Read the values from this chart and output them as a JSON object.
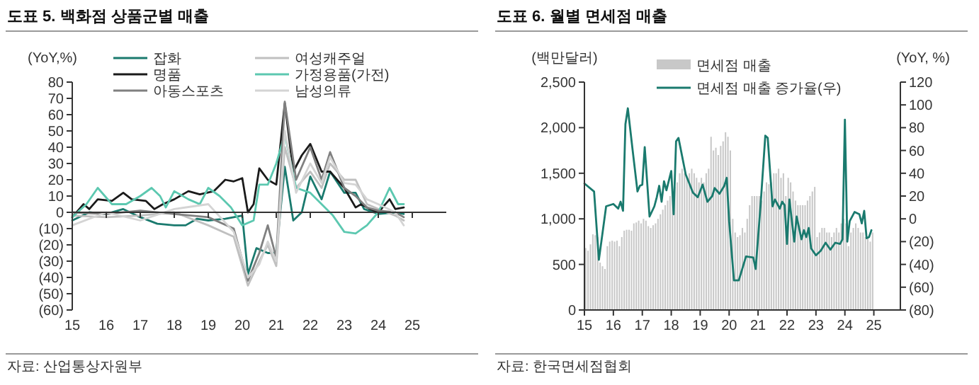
{
  "chart_data": [
    {
      "type": "line",
      "title": "도표 5. 백화점 상품군별 매출",
      "ylabel": "(YoY,%)",
      "legend": "top",
      "xlim": [
        "2015-01",
        "2026-01"
      ],
      "xticks": [
        {
          "value": "2015-01",
          "label": "15"
        },
        {
          "value": "2016-01",
          "label": "16"
        },
        {
          "value": "2017-01",
          "label": "17"
        },
        {
          "value": "2018-01",
          "label": "18"
        },
        {
          "value": "2019-01",
          "label": "19"
        },
        {
          "value": "2020-01",
          "label": "20"
        },
        {
          "value": "2021-01",
          "label": "21"
        },
        {
          "value": "2022-01",
          "label": "22"
        },
        {
          "value": "2023-01",
          "label": "23"
        },
        {
          "value": "2024-01",
          "label": "24"
        },
        {
          "value": "2025-01",
          "label": "25"
        }
      ],
      "ylim": [
        -60,
        80
      ],
      "yticks": [
        {
          "value": -60,
          "label": "(60)"
        },
        {
          "value": -50,
          "label": "(50)"
        },
        {
          "value": -40,
          "label": "(40)"
        },
        {
          "value": -30,
          "label": "(30)"
        },
        {
          "value": -20,
          "label": "(20)"
        },
        {
          "value": -10,
          "label": "(10)"
        },
        0,
        10,
        20,
        30,
        40,
        50,
        60,
        70,
        80
      ],
      "series": [
        {
          "name": "잡화",
          "color": "#1a7a6e",
          "x": [
            "2015-01",
            "2015-07",
            "2016-01",
            "2016-07",
            "2017-01",
            "2017-07",
            "2018-01",
            "2018-05",
            "2018-09",
            "2019-01",
            "2019-07",
            "2020-01",
            "2020-03",
            "2020-06",
            "2020-10",
            "2021-01",
            "2021-04",
            "2021-07",
            "2021-10",
            "2022-01",
            "2022-05",
            "2022-08",
            "2023-01",
            "2023-05",
            "2023-08",
            "2024-01",
            "2024-07",
            "2024-10"
          ],
          "values": [
            -5,
            0,
            -1,
            2,
            -3,
            -7,
            -8,
            -8,
            -4,
            -5,
            -4,
            -2,
            -38,
            -22,
            -25,
            -25,
            28,
            -5,
            0,
            22,
            8,
            25,
            12,
            12,
            2,
            -1,
            0,
            -1
          ]
        },
        {
          "name": "여성캐주얼",
          "color": "#c0c0c0",
          "x": [
            "2015-01",
            "2016-01",
            "2017-01",
            "2018-01",
            "2019-01",
            "2019-10",
            "2020-03",
            "2020-07",
            "2020-10",
            "2021-01",
            "2021-04",
            "2021-08",
            "2022-01",
            "2022-05",
            "2022-08",
            "2023-01",
            "2023-05",
            "2023-09",
            "2024-01",
            "2024-07",
            "2024-10"
          ],
          "values": [
            -2,
            -3,
            -2,
            0,
            -8,
            -15,
            -45,
            -30,
            -20,
            -33,
            40,
            15,
            25,
            15,
            30,
            20,
            20,
            5,
            2,
            -2,
            -5
          ]
        },
        {
          "name": "명품",
          "color": "#1a1a1a",
          "x": [
            "2015-01",
            "2015-05",
            "2015-07",
            "2015-10",
            "2016-03",
            "2016-07",
            "2016-10",
            "2017-03",
            "2017-06",
            "2017-09",
            "2018-01",
            "2018-06",
            "2018-10",
            "2019-03",
            "2019-07",
            "2019-10",
            "2020-01",
            "2020-03",
            "2020-05",
            "2020-07",
            "2020-10",
            "2021-01",
            "2021-04",
            "2021-07",
            "2021-10",
            "2022-01",
            "2022-05",
            "2022-08",
            "2023-01",
            "2023-05",
            "2023-07",
            "2023-10",
            "2024-01",
            "2024-05",
            "2024-07",
            "2024-10"
          ],
          "values": [
            -3,
            5,
            2,
            8,
            7,
            12,
            8,
            7,
            2,
            5,
            8,
            13,
            11,
            13,
            20,
            19,
            21,
            0,
            5,
            27,
            20,
            17,
            67,
            25,
            35,
            42,
            25,
            25,
            15,
            3,
            5,
            2,
            0,
            8,
            2,
            3
          ]
        },
        {
          "name": "가정용품(가전)",
          "color": "#5cc8b0",
          "x": [
            "2015-01",
            "2015-06",
            "2015-10",
            "2016-03",
            "2016-08",
            "2017-01",
            "2017-05",
            "2017-08",
            "2017-10",
            "2018-01",
            "2018-06",
            "2018-10",
            "2019-01",
            "2019-05",
            "2019-09",
            "2020-01",
            "2020-05",
            "2020-07",
            "2020-10",
            "2021-01",
            "2021-04",
            "2021-08",
            "2022-01",
            "2022-05",
            "2022-09",
            "2023-01",
            "2023-05",
            "2023-09",
            "2024-01",
            "2024-05",
            "2024-08",
            "2024-10"
          ],
          "values": [
            -3,
            5,
            15,
            5,
            5,
            10,
            15,
            10,
            3,
            13,
            8,
            5,
            15,
            10,
            3,
            -8,
            -5,
            17,
            17,
            30,
            48,
            15,
            12,
            5,
            -2,
            -12,
            -13,
            -8,
            0,
            15,
            5,
            5
          ]
        },
        {
          "name": "아동스포츠",
          "color": "#808080",
          "x": [
            "2015-01",
            "2016-01",
            "2017-01",
            "2018-01",
            "2019-01",
            "2019-10",
            "2020-03",
            "2020-07",
            "2020-10",
            "2021-01",
            "2021-04",
            "2021-08",
            "2022-01",
            "2022-05",
            "2022-08",
            "2023-01",
            "2023-05",
            "2023-09",
            "2024-01",
            "2024-07",
            "2024-10"
          ],
          "values": [
            0,
            -1,
            1,
            -1,
            -3,
            -10,
            -42,
            -25,
            -8,
            -28,
            68,
            20,
            40,
            20,
            37,
            15,
            10,
            3,
            1,
            0,
            -3
          ]
        },
        {
          "name": "남성의류",
          "color": "#d4d4d4",
          "x": [
            "2015-01",
            "2016-01",
            "2017-01",
            "2018-01",
            "2019-01",
            "2019-10",
            "2020-03",
            "2020-07",
            "2020-10",
            "2021-01",
            "2021-04",
            "2021-08",
            "2022-01",
            "2022-05",
            "2022-08",
            "2023-01",
            "2023-05",
            "2023-09",
            "2024-01",
            "2024-07",
            "2024-10"
          ],
          "values": [
            -8,
            0,
            -5,
            2,
            5,
            -12,
            -40,
            -32,
            -18,
            -30,
            50,
            12,
            30,
            18,
            34,
            18,
            17,
            8,
            5,
            0,
            -8
          ]
        }
      ],
      "annotations": [
        "자료: 산업통상자원부"
      ]
    },
    {
      "type": "bar",
      "title": "도표 6. 월별 면세점 매출",
      "ylabel": "(백만달러)",
      "y2label": "(YoY, %)",
      "legend": "top",
      "xlim": [
        "2015-01",
        "2025-12"
      ],
      "xticks": [
        {
          "value": "2015-01",
          "label": "15"
        },
        {
          "value": "2016-01",
          "label": "16"
        },
        {
          "value": "2017-01",
          "label": "17"
        },
        {
          "value": "2018-01",
          "label": "18"
        },
        {
          "value": "2019-01",
          "label": "19"
        },
        {
          "value": "2020-01",
          "label": "20"
        },
        {
          "value": "2021-01",
          "label": "21"
        },
        {
          "value": "2022-01",
          "label": "22"
        },
        {
          "value": "2023-01",
          "label": "23"
        },
        {
          "value": "2024-01",
          "label": "24"
        },
        {
          "value": "2025-01",
          "label": "25"
        }
      ],
      "ylim": [
        0,
        2500
      ],
      "yticks": [
        0,
        500,
        {
          "value": 1000,
          "label": "1,000"
        },
        {
          "value": 1500,
          "label": "1,500"
        },
        {
          "value": 2000,
          "label": "2,000"
        },
        {
          "value": 2500,
          "label": "2,500"
        }
      ],
      "y2lim": [
        -80,
        120
      ],
      "y2ticks": [
        {
          "value": -80,
          "label": "(80)"
        },
        {
          "value": -60,
          "label": "(60)"
        },
        {
          "value": -40,
          "label": "(40)"
        },
        {
          "value": -20,
          "label": "(20)"
        },
        0,
        20,
        40,
        60,
        80,
        100,
        120
      ],
      "series": [
        {
          "name": "면세점 매출",
          "type": "bar",
          "color": "#c8c8c8",
          "x": [
            "2015-01",
            "2015-02",
            "2015-03",
            "2015-04",
            "2015-05",
            "2015-06",
            "2015-07",
            "2015-08",
            "2015-09",
            "2015-10",
            "2015-11",
            "2015-12",
            "2016-01",
            "2016-02",
            "2016-03",
            "2016-04",
            "2016-05",
            "2016-06",
            "2016-07",
            "2016-08",
            "2016-09",
            "2016-10",
            "2016-11",
            "2016-12",
            "2017-01",
            "2017-02",
            "2017-03",
            "2017-04",
            "2017-05",
            "2017-06",
            "2017-07",
            "2017-08",
            "2017-09",
            "2017-10",
            "2017-11",
            "2017-12",
            "2018-01",
            "2018-02",
            "2018-03",
            "2018-04",
            "2018-05",
            "2018-06",
            "2018-07",
            "2018-08",
            "2018-09",
            "2018-10",
            "2018-11",
            "2018-12",
            "2019-01",
            "2019-02",
            "2019-03",
            "2019-04",
            "2019-05",
            "2019-06",
            "2019-07",
            "2019-08",
            "2019-09",
            "2019-10",
            "2019-11",
            "2019-12",
            "2020-01",
            "2020-02",
            "2020-03",
            "2020-04",
            "2020-05",
            "2020-06",
            "2020-07",
            "2020-08",
            "2020-09",
            "2020-10",
            "2020-11",
            "2020-12",
            "2021-01",
            "2021-02",
            "2021-03",
            "2021-04",
            "2021-05",
            "2021-06",
            "2021-07",
            "2021-08",
            "2021-09",
            "2021-10",
            "2021-11",
            "2021-12",
            "2022-01",
            "2022-02",
            "2022-03",
            "2022-04",
            "2022-05",
            "2022-06",
            "2022-07",
            "2022-08",
            "2022-09",
            "2022-10",
            "2022-11",
            "2022-12",
            "2023-01",
            "2023-02",
            "2023-03",
            "2023-04",
            "2023-05",
            "2023-06",
            "2023-07",
            "2023-08",
            "2023-09",
            "2023-10",
            "2023-11",
            "2023-12",
            "2024-01",
            "2024-02",
            "2024-03",
            "2024-04",
            "2024-05",
            "2024-06",
            "2024-07",
            "2024-08",
            "2024-09",
            "2024-10",
            "2024-11",
            "2024-12"
          ],
          "values": [
            680,
            650,
            720,
            830,
            820,
            800,
            520,
            480,
            450,
            700,
            750,
            760,
            750,
            760,
            700,
            800,
            870,
            880,
            880,
            870,
            950,
            960,
            980,
            950,
            1000,
            980,
            920,
            900,
            930,
            950,
            1000,
            1050,
            1100,
            1150,
            1200,
            1250,
            1300,
            1350,
            1400,
            1500,
            1550,
            1500,
            1450,
            1500,
            1550,
            1500,
            1450,
            1400,
            1450,
            1400,
            1500,
            1550,
            1900,
            1750,
            1780,
            1700,
            1800,
            1850,
            1950,
            1900,
            1750,
            1000,
            850,
            800,
            820,
            900,
            850,
            1000,
            1150,
            1250,
            1250,
            1250,
            1250,
            1200,
            1300,
            1400,
            1380,
            1400,
            1500,
            1500,
            1550,
            1450,
            1500,
            1250,
            1450,
            1400,
            1300,
            1200,
            1150,
            1150,
            1150,
            1150,
            1200,
            1250,
            1300,
            1350,
            800,
            850,
            900,
            900,
            850,
            850,
            800,
            850,
            900,
            850,
            950,
            1000,
            950,
            700,
            850,
            900,
            950,
            900,
            850,
            850,
            800,
            800,
            750,
            850
          ]
        },
        {
          "name": "면세점 매출 증가율(우)",
          "type": "line",
          "axis": "y2",
          "color": "#1a7a6e",
          "x": [
            "2015-01",
            "2015-05",
            "2015-07",
            "2015-10",
            "2016-01",
            "2016-03",
            "2016-04",
            "2016-05",
            "2016-06",
            "2016-07",
            "2016-09",
            "2016-11",
            "2016-12",
            "2017-01",
            "2017-02",
            "2017-04",
            "2017-06",
            "2017-07",
            "2017-08",
            "2017-09",
            "2017-10",
            "2017-11",
            "2018-01",
            "2018-02",
            "2018-03",
            "2018-04",
            "2018-07",
            "2018-10",
            "2018-12",
            "2019-02",
            "2019-04",
            "2019-06",
            "2019-07",
            "2019-09",
            "2019-11",
            "2019-12",
            "2020-01",
            "2020-03",
            "2020-05",
            "2020-08",
            "2020-11",
            "2020-12",
            "2021-02",
            "2021-04",
            "2021-05",
            "2021-07",
            "2021-08",
            "2021-10",
            "2021-11",
            "2021-12",
            "2022-01",
            "2022-02",
            "2022-04",
            "2022-05",
            "2022-07",
            "2022-08",
            "2022-09",
            "2022-10",
            "2022-11",
            "2023-01",
            "2023-03",
            "2023-05",
            "2023-07",
            "2023-09",
            "2023-11",
            "2023-12",
            "2024-01",
            "2024-02",
            "2024-03",
            "2024-05",
            "2024-07",
            "2024-08",
            "2024-09",
            "2024-10",
            "2024-11",
            "2024-12"
          ],
          "values": [
            31,
            24,
            -36,
            11,
            13,
            9,
            15,
            7,
            83,
            97,
            60,
            24,
            29,
            30,
            63,
            2,
            11,
            19,
            29,
            15,
            33,
            25,
            42,
            4,
            68,
            71,
            39,
            23,
            19,
            30,
            15,
            20,
            27,
            22,
            29,
            36,
            -2,
            -54,
            -54,
            -33,
            -34,
            -44,
            11,
            73,
            71,
            11,
            17,
            9,
            15,
            12,
            -22,
            17,
            -20,
            2,
            -18,
            -10,
            -16,
            -8,
            -26,
            -32,
            -28,
            -21,
            -27,
            -21,
            -22,
            -18,
            87,
            -20,
            -2,
            6,
            4,
            -4,
            7,
            -17,
            -16,
            -10
          ]
        }
      ],
      "annotations": [
        "자료: 한국면세점협회"
      ]
    }
  ]
}
